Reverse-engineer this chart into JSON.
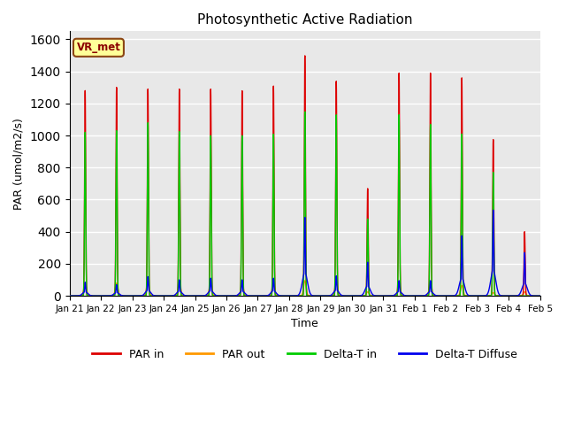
{
  "title": "Photosynthetic Active Radiation",
  "ylabel": "PAR (umol/m2/s)",
  "xlabel": "Time",
  "ylim": [
    0,
    1650
  ],
  "background_color": "#e8e8e8",
  "grid_color": "white",
  "label_box_text": "VR_met",
  "label_box_color": "#ffff99",
  "label_box_edge": "#8B4513",
  "xtick_labels": [
    "Jan 21",
    "Jan 22",
    "Jan 23",
    "Jan 24",
    "Jan 25",
    "Jan 26",
    "Jan 27",
    "Jan 28",
    "Jan 29",
    "Jan 30",
    "Jan 31",
    "Feb 1",
    "Feb 2",
    "Feb 3",
    "Feb 4",
    "Feb 5"
  ],
  "colors": {
    "PAR in": "#dd0000",
    "PAR out": "#ff9900",
    "Delta-T in": "#00cc00",
    "Delta-T Diffuse": "#0000ee"
  },
  "peaks": {
    "PAR_in": [
      1280,
      1300,
      1290,
      1290,
      1290,
      1280,
      1310,
      1500,
      1340,
      670,
      1390,
      1390,
      1360,
      975,
      400
    ],
    "PAR_out": [
      80,
      80,
      90,
      80,
      85,
      80,
      85,
      95,
      90,
      25,
      90,
      85,
      65,
      20,
      25
    ],
    "DeltaT_in": [
      1020,
      1030,
      1080,
      1025,
      1000,
      1000,
      1010,
      1150,
      1130,
      480,
      1130,
      1070,
      1010,
      770,
      0
    ],
    "DeltaT_diff": [
      85,
      70,
      120,
      100,
      110,
      100,
      110,
      490,
      125,
      210,
      95,
      95,
      375,
      535,
      270
    ]
  },
  "sigma_narrow": 0.018,
  "sigma_medium": 0.04,
  "sigma_wide": 0.08,
  "pts_per_day": 500
}
